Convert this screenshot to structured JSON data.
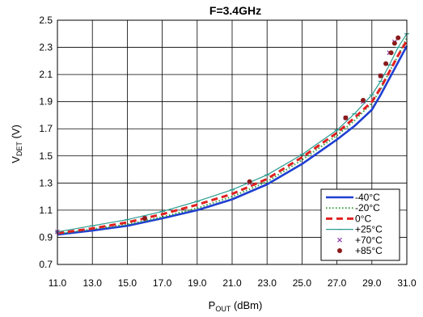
{
  "chart_data": {
    "type": "line",
    "title": "F=3.4GHz",
    "xlabel": {
      "main": "P",
      "sub": "OUT",
      "suffix": " (dBm)"
    },
    "ylabel": {
      "main": "V",
      "sub": "DET",
      "suffix": " (V)"
    },
    "xlim": [
      11.0,
      31.0
    ],
    "ylim": [
      0.7,
      2.5
    ],
    "grid": true,
    "legend_position": "bottom-right",
    "x_ticks": [
      "11.0",
      "13.0",
      "15.0",
      "17.0",
      "19.0",
      "21.0",
      "23.0",
      "25.0",
      "27.0",
      "29.0",
      "31.0"
    ],
    "y_ticks": [
      "0.7",
      "0.9",
      "1.1",
      "1.3",
      "1.5",
      "1.7",
      "1.9",
      "2.1",
      "2.3",
      "2.5"
    ],
    "series": [
      {
        "name": "-40°C",
        "style": "solid-thick",
        "color": "#1f3fd1",
        "points": [
          [
            11.0,
            0.92
          ],
          [
            13.0,
            0.95
          ],
          [
            15.0,
            0.985
          ],
          [
            17.0,
            1.04
          ],
          [
            19.0,
            1.1
          ],
          [
            21.0,
            1.18
          ],
          [
            23.0,
            1.29
          ],
          [
            25.0,
            1.44
          ],
          [
            27.0,
            1.62
          ],
          [
            28.0,
            1.72
          ],
          [
            29.0,
            1.84
          ],
          [
            29.5,
            1.95
          ],
          [
            30.0,
            2.07
          ],
          [
            30.5,
            2.19
          ],
          [
            31.0,
            2.31
          ]
        ]
      },
      {
        "name": "-20°C",
        "style": "dotted",
        "color": "#2e9e3a",
        "points": [
          [
            11.0,
            0.925
          ],
          [
            13.0,
            0.96
          ],
          [
            15.0,
            0.995
          ],
          [
            17.0,
            1.05
          ],
          [
            19.0,
            1.115
          ],
          [
            21.0,
            1.2
          ],
          [
            23.0,
            1.31
          ],
          [
            25.0,
            1.47
          ],
          [
            27.0,
            1.65
          ],
          [
            28.0,
            1.76
          ],
          [
            29.0,
            1.89
          ],
          [
            29.5,
            1.99
          ],
          [
            30.0,
            2.12
          ],
          [
            30.5,
            2.24
          ],
          [
            31.0,
            2.37
          ]
        ]
      },
      {
        "name": "0°C",
        "style": "dashed-thick",
        "color": "#e02020",
        "points": [
          [
            11.0,
            0.93
          ],
          [
            13.0,
            0.965
          ],
          [
            15.0,
            1.01
          ],
          [
            17.0,
            1.07
          ],
          [
            19.0,
            1.14
          ],
          [
            21.0,
            1.22
          ],
          [
            23.0,
            1.33
          ],
          [
            25.0,
            1.49
          ],
          [
            27.0,
            1.67
          ],
          [
            28.0,
            1.78
          ],
          [
            29.0,
            1.9
          ],
          [
            29.5,
            2.0
          ],
          [
            30.0,
            2.12
          ],
          [
            30.5,
            2.24
          ],
          [
            31.0,
            2.35
          ]
        ]
      },
      {
        "name": "+25°C",
        "style": "solid-marker",
        "color": "#2a9d8f",
        "points": [
          [
            11.0,
            0.94
          ],
          [
            13.0,
            0.985
          ],
          [
            15.0,
            1.03
          ],
          [
            17.0,
            1.09
          ],
          [
            19.0,
            1.165
          ],
          [
            21.0,
            1.25
          ],
          [
            23.0,
            1.36
          ],
          [
            25.0,
            1.51
          ],
          [
            27.0,
            1.69
          ],
          [
            28.0,
            1.81
          ],
          [
            29.0,
            1.95
          ],
          [
            29.5,
            2.05
          ],
          [
            30.0,
            2.17
          ],
          [
            30.5,
            2.3
          ],
          [
            31.0,
            2.4
          ]
        ]
      },
      {
        "name": "+70°C",
        "style": "x-marker",
        "color": "#8e44ad",
        "points": [
          [
            11.0,
            0.94
          ],
          [
            16.0,
            1.04
          ],
          [
            22.0,
            1.3
          ],
          [
            27.5,
            1.78
          ],
          [
            28.5,
            1.9
          ],
          [
            29.5,
            2.09
          ],
          [
            30.0,
            2.26
          ],
          [
            30.3,
            2.34
          ]
        ]
      },
      {
        "name": "+85°C",
        "style": "dot-marker",
        "color": "#8b1a1a",
        "points": [
          [
            16.0,
            1.04
          ],
          [
            22.0,
            1.31
          ],
          [
            27.5,
            1.78
          ],
          [
            28.5,
            1.91
          ],
          [
            29.5,
            2.09
          ],
          [
            29.8,
            2.18
          ],
          [
            30.1,
            2.26
          ],
          [
            30.3,
            2.33
          ],
          [
            30.5,
            2.37
          ]
        ]
      }
    ]
  }
}
